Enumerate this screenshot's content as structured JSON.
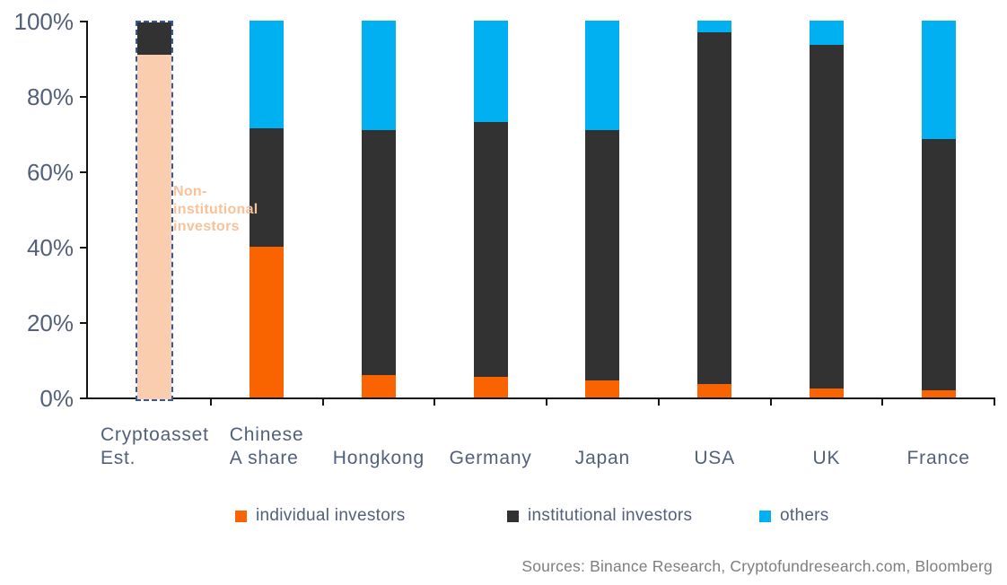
{
  "chart_data": {
    "type": "bar",
    "stacked": true,
    "title": "",
    "xlabel": "",
    "ylabel": "",
    "ylim": [
      0,
      100
    ],
    "unit": "percent",
    "grid": false,
    "legend_position": "bottom",
    "ytick_labels": [
      "0%",
      "20%",
      "40%",
      "60%",
      "80%",
      "100%"
    ],
    "colors": {
      "individual": "#FA6400",
      "institutional": "#323232",
      "others": "#00B0F0",
      "non_institutional_fill": "#F9CDAD",
      "highlight_border": "#3358A4",
      "axis_text": "#52607C",
      "annotation_text": "#F7C29A",
      "source_text": "#7E7E7E"
    },
    "legend": [
      {
        "label": "individual investors",
        "color": "#FA6400"
      },
      {
        "label": "institutional investors",
        "color": "#323232"
      },
      {
        "label": "others",
        "color": "#00B0F0"
      }
    ],
    "bars": [
      {
        "category": "Cryptoasset Est.",
        "label_lines": "Cryptoasset\nEst.",
        "highlighted": true,
        "annotation": "Non-institutional investors",
        "segments": [
          {
            "series": "non-institutional investors",
            "value": 91.5,
            "color": "#F9CDAD"
          },
          {
            "series": "institutional investors",
            "value": 8.5,
            "color": "#323232"
          }
        ]
      },
      {
        "category": "Chinese A share",
        "label_lines": "Chinese\nA share",
        "highlighted": false,
        "segments": [
          {
            "series": "individual investors",
            "value": 40,
            "color": "#FA6400"
          },
          {
            "series": "institutional investors",
            "value": 31.5,
            "color": "#323232"
          },
          {
            "series": "others",
            "value": 28.5,
            "color": "#00B0F0"
          }
        ]
      },
      {
        "category": "Hongkong",
        "label_lines": "Hongkong",
        "highlighted": false,
        "segments": [
          {
            "series": "individual investors",
            "value": 6,
            "color": "#FA6400"
          },
          {
            "series": "institutional investors",
            "value": 65,
            "color": "#323232"
          },
          {
            "series": "others",
            "value": 29,
            "color": "#00B0F0"
          }
        ]
      },
      {
        "category": "Germany",
        "label_lines": "Germany",
        "highlighted": false,
        "segments": [
          {
            "series": "individual investors",
            "value": 5.5,
            "color": "#FA6400"
          },
          {
            "series": "institutional investors",
            "value": 67.5,
            "color": "#323232"
          },
          {
            "series": "others",
            "value": 27,
            "color": "#00B0F0"
          }
        ]
      },
      {
        "category": "Japan",
        "label_lines": "Japan",
        "highlighted": false,
        "segments": [
          {
            "series": "individual investors",
            "value": 4.5,
            "color": "#FA6400"
          },
          {
            "series": "institutional investors",
            "value": 66.5,
            "color": "#323232"
          },
          {
            "series": "others",
            "value": 29,
            "color": "#00B0F0"
          }
        ]
      },
      {
        "category": "USA",
        "label_lines": "USA",
        "highlighted": false,
        "segments": [
          {
            "series": "individual investors",
            "value": 3.5,
            "color": "#FA6400"
          },
          {
            "series": "institutional investors",
            "value": 93.5,
            "color": "#323232"
          },
          {
            "series": "others",
            "value": 3,
            "color": "#00B0F0"
          }
        ]
      },
      {
        "category": "UK",
        "label_lines": "UK",
        "highlighted": false,
        "segments": [
          {
            "series": "individual investors",
            "value": 2.5,
            "color": "#FA6400"
          },
          {
            "series": "institutional investors",
            "value": 91,
            "color": "#323232"
          },
          {
            "series": "others",
            "value": 6.5,
            "color": "#00B0F0"
          }
        ]
      },
      {
        "category": "France",
        "label_lines": "France",
        "highlighted": false,
        "segments": [
          {
            "series": "individual investors",
            "value": 2,
            "color": "#FA6400"
          },
          {
            "series": "institutional investors",
            "value": 66.5,
            "color": "#323232"
          },
          {
            "series": "others",
            "value": 31.5,
            "color": "#00B0F0"
          }
        ]
      }
    ],
    "source_note": "Sources: Binance Research, Cryptofundresearch.com, Bloomberg"
  }
}
